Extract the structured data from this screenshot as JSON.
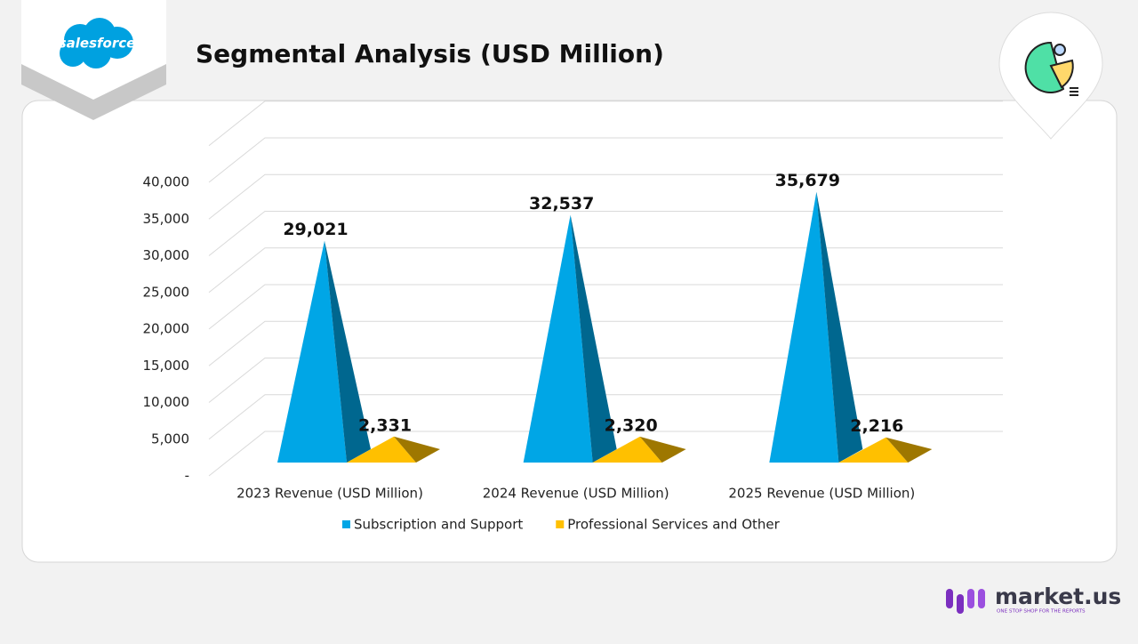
{
  "header": {
    "logo": "salesforce"
  },
  "chart_data": {
    "type": "pyramid3d",
    "title": "Segmental Analysis (USD Million)",
    "categories": [
      "2023 Revenue (USD Million)",
      "2024 Revenue (USD Million)",
      "2025 Revenue (USD Million)"
    ],
    "series": [
      {
        "name": "Subscription and Support",
        "color": "#00a6e6",
        "values": [
          29021,
          32537,
          35679
        ],
        "value_labels": [
          "29,021",
          "32,537",
          "35,679"
        ]
      },
      {
        "name": "Professional Services and Other",
        "color": "#ffc000",
        "values": [
          2331,
          2320,
          2216
        ],
        "value_labels": [
          "2,331",
          "2,320",
          "2,216"
        ]
      }
    ],
    "ylim": [
      0,
      45000
    ],
    "yticks": [
      {
        "value": 0,
        "label": "-"
      },
      {
        "value": 5000,
        "label": "5,000"
      },
      {
        "value": 10000,
        "label": "10,000"
      },
      {
        "value": 15000,
        "label": "15,000"
      },
      {
        "value": 20000,
        "label": "20,000"
      },
      {
        "value": 25000,
        "label": "25,000"
      },
      {
        "value": 30000,
        "label": "30,000"
      },
      {
        "value": 35000,
        "label": "35,000"
      },
      {
        "value": 40000,
        "label": "40,000"
      }
    ],
    "grid": true,
    "legend": "bottom"
  },
  "footer": {
    "brand": "market.us",
    "tagline": "ONE STOP SHOP FOR THE REPORTS"
  }
}
